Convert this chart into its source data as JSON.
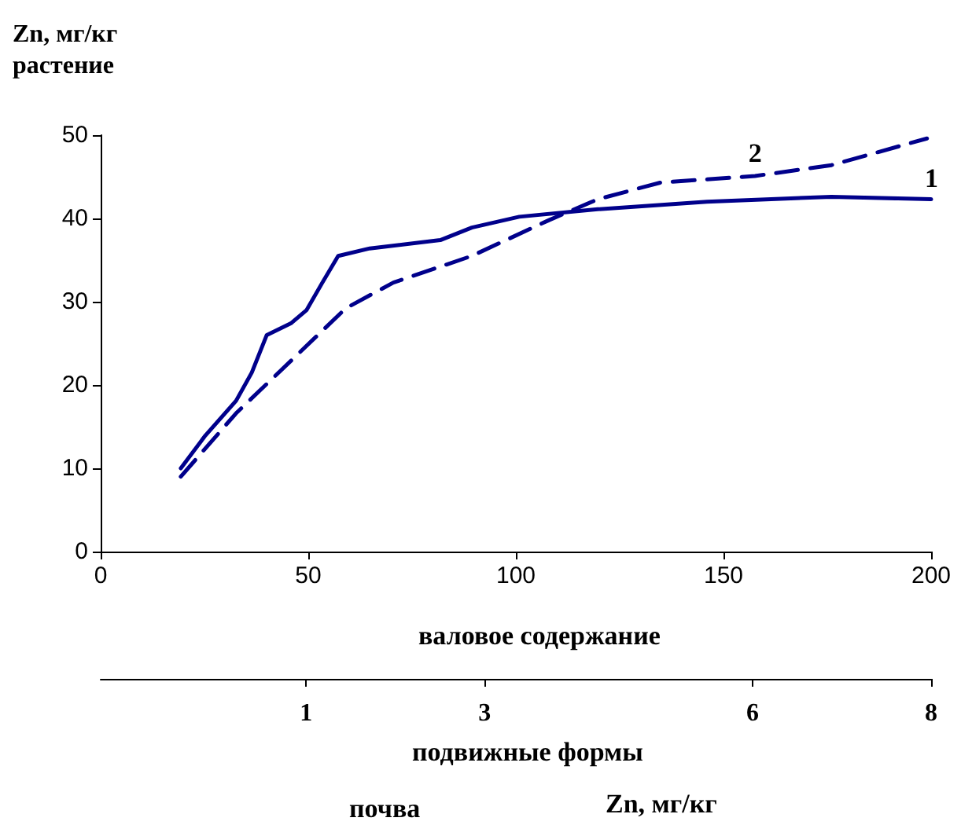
{
  "chart_data": {
    "type": "line",
    "ylabel": "Zn, мг/кг растение",
    "xlabel": "валовое содержание",
    "x2label": "подвижные формы",
    "annotations": [
      "почва",
      "Zn, мг/кг"
    ],
    "xlim": [
      0,
      200
    ],
    "xticks": [
      0,
      50,
      100,
      150,
      200
    ],
    "ylim": [
      0,
      50
    ],
    "yticks": [
      0,
      10,
      20,
      30,
      40,
      50
    ],
    "x2lim": [
      -1.3,
      8
    ],
    "x2ticks": [
      1,
      3,
      6,
      8
    ],
    "grid": false,
    "legend": false,
    "marker": "none",
    "series": [
      {
        "name": "1",
        "color": "#00008b",
        "line_style": "solid",
        "x": [
          19.3,
          25,
          32.6,
          36.4,
          40,
          45.8,
          49.6,
          53.4,
          57.2,
          64.8,
          81.8,
          89.4,
          100.8,
          119.7,
          146,
          176,
          200
        ],
        "values": [
          10,
          13.8,
          18.1,
          21.5,
          26,
          27.4,
          29,
          32.3,
          35.5,
          36.4,
          37.4,
          38.9,
          40.2,
          41.1,
          42,
          42.6,
          42.3
        ]
      },
      {
        "name": "2",
        "color": "#00008b",
        "line_style": "dashed",
        "x": [
          19.3,
          32.6,
          47.7,
          59,
          70.5,
          89.4,
          108,
          119.7,
          134.8,
          157.6,
          176,
          199
        ],
        "values": [
          9,
          16.6,
          23.8,
          29.2,
          32.3,
          35.5,
          39.8,
          42.3,
          44.3,
          45.1,
          46.4,
          49.6
        ]
      }
    ]
  }
}
